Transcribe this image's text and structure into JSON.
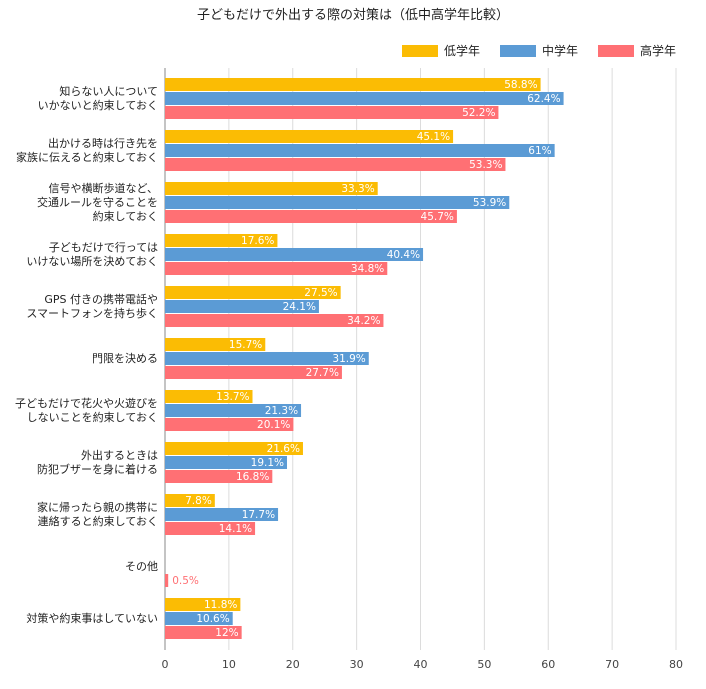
{
  "chart_data": {
    "type": "bar",
    "orientation": "horizontal",
    "title": "子どもだけで外出する際の対策は（低中高学年比較）",
    "xlim": [
      0,
      80
    ],
    "xticks": [
      0,
      10,
      20,
      30,
      40,
      50,
      60,
      70,
      80
    ],
    "grid": true,
    "legend_position": "top-right",
    "categories": [
      "知らない人について\nいかないと約束しておく",
      "出かける時は行き先を\n家族に伝えると約束しておく",
      "信号や横断歩道など、\n交通ルールを守ることを\n約束しておく",
      "子どもだけで行っては\nいけない場所を決めておく",
      "GPS 付きの携帯電話や\nスマートフォンを持ち歩く",
      "門限を決める",
      "子どもだけで花火や火遊びを\nしないことを約束しておく",
      "外出するときは\n防犯ブザーを身に着ける",
      "家に帰ったら親の携帯に\n連絡すると約束しておく",
      "その他",
      "対策や約束事はしていない"
    ],
    "series": [
      {
        "name": "低学年",
        "color": "#FBBC04",
        "values": [
          58.8,
          45.1,
          33.3,
          17.6,
          27.5,
          15.7,
          13.7,
          21.6,
          7.8,
          0,
          11.8
        ],
        "labels": [
          "58.8%",
          "45.1%",
          "33.3%",
          "17.6%",
          "27.5%",
          "15.7%",
          "13.7%",
          "21.6%",
          "7.8%",
          "",
          "11.8%"
        ]
      },
      {
        "name": "中学年",
        "color": "#5B9BD5",
        "values": [
          62.4,
          61,
          53.9,
          40.4,
          24.1,
          31.9,
          21.3,
          19.1,
          17.7,
          0,
          10.6
        ],
        "labels": [
          "62.4%",
          "61%",
          "53.9%",
          "40.4%",
          "24.1%",
          "31.9%",
          "21.3%",
          "19.1%",
          "17.7%",
          "",
          "10.6%"
        ]
      },
      {
        "name": "高学年",
        "color": "#FF7074",
        "values": [
          52.2,
          53.3,
          45.7,
          34.8,
          34.2,
          27.7,
          20.1,
          16.8,
          14.1,
          0.5,
          12
        ],
        "labels": [
          "52.2%",
          "53.3%",
          "45.7%",
          "34.8%",
          "34.2%",
          "27.7%",
          "20.1%",
          "16.8%",
          "14.1%",
          "0.5%",
          "12%"
        ]
      }
    ]
  }
}
